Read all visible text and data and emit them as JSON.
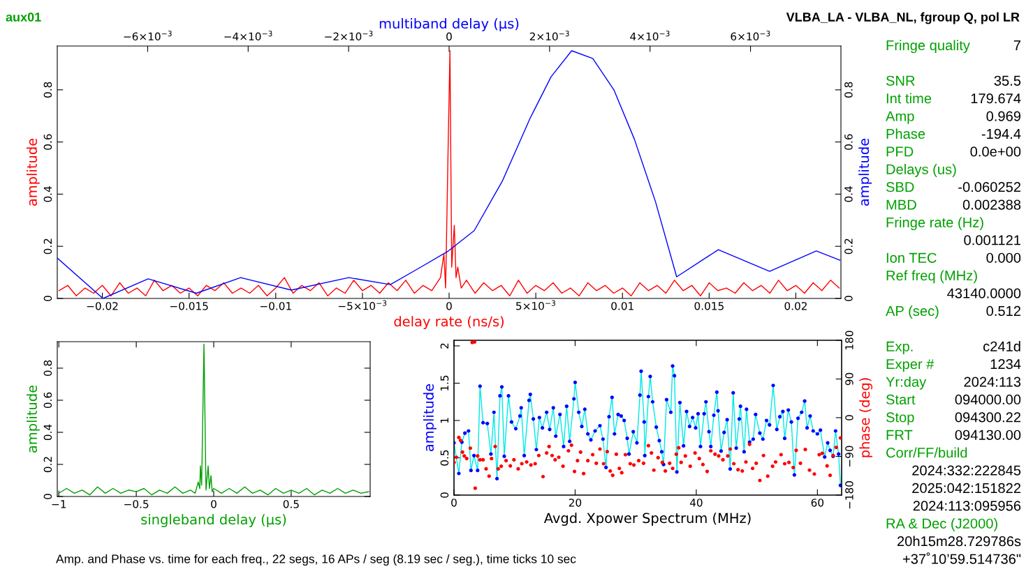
{
  "chart_data": [
    {
      "type": "line",
      "xlabel": "delay rate (ns/s)",
      "ylabel": "amplitude",
      "x2label": "multiband delay (μs)",
      "y2label": "amplitude",
      "annotations": [
        "aux01",
        "VLBA_LA - VLBA_NL, fgroup Q, pol LR",
        "Amp. and Phase vs. time for each freq., 22 segs, 16 APs / seg (8.19 sec / seg.), time ticks 10 sec"
      ],
      "xlim": [
        -0.0226,
        0.0226
      ],
      "ylim": [
        0,
        0.968
      ],
      "x2lim": [
        -0.0078,
        0.0078
      ],
      "y2lim": [
        0,
        0.968
      ],
      "xticks": [
        {
          "value": -0.02,
          "label": "−0.02"
        },
        {
          "value": -0.015,
          "label": "−0.015"
        },
        {
          "value": -0.01,
          "label": "−0.01"
        },
        {
          "value": -0.005,
          "label": "−5×10$^{−3}$"
        },
        0,
        {
          "value": 0.005,
          "label": "5×10$^{−3}$"
        },
        0.01,
        0.015,
        0.02
      ],
      "yticks": [
        0,
        0.2,
        0.4,
        0.6,
        0.8
      ],
      "y2ticks": [
        0,
        0.2,
        0.4,
        0.6,
        0.8
      ],
      "x2ticks": [
        {
          "value": -0.006,
          "label": "−6×10$^{−3}$"
        },
        {
          "value": -0.004,
          "label": "−4×10$^{−3}$"
        },
        {
          "value": -0.002,
          "label": "−2×10$^{−3}$"
        },
        0,
        {
          "value": 0.002,
          "label": "2×10$^{−3}$"
        },
        {
          "value": 0.004,
          "label": "4×10$^{−3}$"
        },
        {
          "value": 0.006,
          "label": "6×10$^{−3}$"
        }
      ],
      "grid": false,
      "series": [
        {
          "color": "#ff0000",
          "x": [
            -0.0225,
            -0.022,
            -0.0215,
            -0.021,
            -0.0205,
            -0.02,
            -0.0195,
            -0.019,
            -0.0185,
            -0.018,
            -0.0175,
            -0.017,
            -0.0165,
            -0.016,
            -0.0155,
            -0.015,
            -0.0145,
            -0.014,
            -0.0135,
            -0.013,
            -0.0125,
            -0.012,
            -0.0115,
            -0.011,
            -0.0105,
            -0.01,
            -0.0095,
            -0.009,
            -0.0085,
            -0.008,
            -0.0075,
            -0.007,
            -0.0065,
            -0.006,
            -0.0055,
            -0.005,
            -0.0045,
            -0.004,
            -0.0035,
            -0.003,
            -0.0025,
            -0.002,
            -0.0015,
            -0.001,
            -0.0005,
            -0.0003,
            -0.0002,
            -5e-05,
            5e-05,
            0.00015,
            0.0003,
            0.0004,
            0.0005,
            0.0007,
            0.001,
            0.0015,
            0.002,
            0.0025,
            0.003,
            0.0035,
            0.004,
            0.0045,
            0.005,
            0.0055,
            0.006,
            0.0065,
            0.007,
            0.0075,
            0.008,
            0.0085,
            0.009,
            0.0095,
            0.01,
            0.0105,
            0.011,
            0.0115,
            0.012,
            0.0125,
            0.013,
            0.0135,
            0.014,
            0.0145,
            0.015,
            0.0155,
            0.016,
            0.0165,
            0.017,
            0.0175,
            0.018,
            0.0185,
            0.019,
            0.0195,
            0.02,
            0.0205,
            0.021,
            0.0215,
            0.022,
            0.0225
          ],
          "values": [
            0.03,
            0.05,
            0.01,
            0.04,
            0.02,
            0.05,
            0.01,
            0.06,
            0.02,
            0.04,
            0.01,
            0.07,
            0.03,
            0.05,
            0.02,
            0.04,
            0.01,
            0.05,
            0.03,
            0.06,
            0.02,
            0.04,
            0.02,
            0.05,
            0.01,
            0.04,
            0.08,
            0.02,
            0.05,
            0.03,
            0.06,
            0.01,
            0.04,
            0.02,
            0.07,
            0.03,
            0.05,
            0.02,
            0.06,
            0.03,
            0.07,
            0.02,
            0.05,
            0.03,
            0.08,
            0.17,
            0.04,
            0.6,
            0.95,
            0.12,
            0.28,
            0.08,
            0.12,
            0.04,
            0.07,
            0.02,
            0.06,
            0.03,
            0.05,
            0.01,
            0.07,
            0.02,
            0.05,
            0.03,
            0.06,
            0.02,
            0.04,
            0.01,
            0.06,
            0.03,
            0.05,
            0.02,
            0.04,
            0.01,
            0.06,
            0.03,
            0.05,
            0.02,
            0.07,
            0.03,
            0.05,
            0.01,
            0.06,
            0.03,
            0.04,
            0.02,
            0.06,
            0.03,
            0.05,
            0.02,
            0.07,
            0.03,
            0.05,
            0.02,
            0.06,
            0.03,
            0.07,
            0.04
          ]
        },
        {
          "color": "#0000ff",
          "axis": "x2",
          "x": [
            -0.0078,
            -0.00689,
            -0.00599,
            -0.00503,
            -0.00415,
            -0.00314,
            -0.002,
            -0.00117,
            -0.00061,
            -3e-05,
            0.0005,
            0.00106,
            0.00161,
            0.00203,
            0.00244,
            0.00286,
            0.00328,
            0.00369,
            0.00411,
            0.00453,
            0.00536,
            0.00638,
            0.00731,
            0.00778
          ],
          "values": [
            0.155,
            0,
            0.075,
            0.02,
            0.08,
            0.032,
            0.08,
            0.053,
            0.115,
            0.18,
            0.26,
            0.45,
            0.69,
            0.85,
            0.95,
            0.92,
            0.8,
            0.61,
            0.37,
            0.083,
            0.187,
            0.104,
            0.182,
            0.147
          ]
        }
      ]
    },
    {
      "type": "line",
      "xlabel": "singleband delay (μs)",
      "ylabel": "amplitude",
      "xlim": [
        -1.01,
        1.01
      ],
      "ylim": [
        0,
        0.965
      ],
      "xticks": [
        {
          "value": -1,
          "label": "−1"
        },
        {
          "value": -0.5,
          "label": "−0.5"
        },
        0,
        0.5
      ],
      "yticks": [
        0,
        0.2,
        0.4,
        0.6,
        0.8
      ],
      "grid": false,
      "series": [
        {
          "color": "#00a000",
          "x": [
            -1,
            -0.95,
            -0.9,
            -0.85,
            -0.8,
            -0.75,
            -0.7,
            -0.65,
            -0.6,
            -0.55,
            -0.5,
            -0.45,
            -0.4,
            -0.35,
            -0.3,
            -0.25,
            -0.2,
            -0.15,
            -0.12,
            -0.1,
            -0.09,
            -0.086,
            -0.078,
            -0.063,
            -0.05,
            -0.036,
            -0.028,
            -0.018,
            -0.01,
            0,
            0.05,
            0.1,
            0.15,
            0.2,
            0.25,
            0.3,
            0.35,
            0.4,
            0.45,
            0.5,
            0.55,
            0.6,
            0.65,
            0.7,
            0.75,
            0.8,
            0.85,
            0.9,
            0.95,
            1
          ],
          "values": [
            0.02,
            0.05,
            0.02,
            0.04,
            0.01,
            0.06,
            0.02,
            0.05,
            0.02,
            0.04,
            0.03,
            0.05,
            0.01,
            0.04,
            0.02,
            0.06,
            0.02,
            0.04,
            0.02,
            0.09,
            0.05,
            0.19,
            0.07,
            0.95,
            0.04,
            0.19,
            0.05,
            0.13,
            0.03,
            0.05,
            0.02,
            0.05,
            0.02,
            0.06,
            0.02,
            0.04,
            0.01,
            0.05,
            0.02,
            0.04,
            0.02,
            0.05,
            0.01,
            0.04,
            0.02,
            0.05,
            0.02,
            0.04,
            0.02,
            0.03
          ]
        }
      ]
    },
    {
      "type": "scatter",
      "xlabel": "Avgd. Xpower Spectrum (MHz)",
      "ylabel": "amplitude",
      "y2label": "phase (deg)",
      "xlim": [
        0,
        64
      ],
      "ylim": [
        0,
        2.075
      ],
      "y2lim": [
        -180,
        180
      ],
      "xticks": [
        0,
        20,
        40,
        60
      ],
      "yticks": [
        0,
        0.5,
        1,
        1.5,
        2
      ],
      "y2ticks": [
        {
          "value": -180,
          "label": "−180"
        },
        {
          "value": -90,
          "label": "−90"
        },
        0,
        90,
        180
      ],
      "grid": false,
      "series": [
        {
          "type": "scatter",
          "marker": "circle",
          "color": "#0000ff",
          "x": [
            0.0,
            0.8,
            1.3,
            1.8,
            2.4,
            2.8,
            3.3,
            3.9,
            4.3,
            4.8,
            5.5,
            6.1,
            6.6,
            7.1,
            7.6,
            7.9,
            8.3,
            9.0,
            9.5,
            10.2,
            10.9,
            11.1,
            11.6,
            12.4,
            12.6,
            13.1,
            13.6,
            14.1,
            14.6,
            15.3,
            15.8,
            16.4,
            16.8,
            17.5,
            18.1,
            18.6,
            19.1,
            19.8,
            20.0,
            20.6,
            21.1,
            21.6,
            22.1,
            22.6,
            23.3,
            24.1,
            24.6,
            25.1,
            25.6,
            26.1,
            26.5,
            27.1,
            27.6,
            28.1,
            28.6,
            28.9,
            29.6,
            30.2,
            30.7,
            30.9,
            31.4,
            31.5,
            32.1,
            32.4,
            32.8,
            33.4,
            33.9,
            34.3,
            34.6,
            35.1,
            35.8,
            36.1,
            36.4,
            36.8,
            37.3,
            37.9,
            38.4,
            38.9,
            39.4,
            39.9,
            40.3,
            40.7,
            41.3,
            41.6,
            42.1,
            42.4,
            42.9,
            43.4,
            43.6,
            44.1,
            44.6,
            45.1,
            45.6,
            46.1,
            46.6,
            47.1,
            47.3,
            47.9,
            48.3,
            48.8,
            49.4,
            49.8,
            50.5,
            51.0,
            51.6,
            52.1,
            52.7,
            53.3,
            53.8,
            54.3,
            54.6,
            55.2,
            55.7,
            56.2,
            56.8,
            57.4,
            57.9,
            58.3,
            58.8,
            59.3,
            60.0,
            60.5,
            61.2,
            61.7,
            62.1,
            62.6,
            63.0,
            63.5,
            63.8
          ],
          "values": [
            0.7,
            0.29,
            0.71,
            0.83,
            0.86,
            0.33,
            0.53,
            0.33,
            1.46,
            0.97,
            0.96,
            0.55,
            1.11,
            0.22,
            1.33,
            1.45,
            0.52,
            1.33,
            0.98,
            0.89,
            1.06,
            1.17,
            0.53,
            1.27,
            1.35,
            1.02,
            0.61,
            1.04,
            0.9,
            1.11,
            0.88,
            1.17,
            0.79,
            1.08,
            0.65,
            1.19,
            0.72,
            1.29,
            1.51,
            1.11,
            0.92,
            1.15,
            0.82,
            0.74,
            0.86,
            0.93,
            0.75,
            0.37,
            1.05,
            1.31,
            0.82,
            1.08,
            1.06,
            1.0,
            0.76,
            0.55,
            0.85,
            0.7,
            1.34,
            1.66,
            0.98,
            0.53,
            1.32,
            1.59,
            1.25,
            0.91,
            0.73,
            0.58,
            0.41,
            1.28,
            1.11,
            1.73,
            1.6,
            0.31,
            1.24,
            0.66,
            1.12,
            0.92,
            1.04,
            0.9,
            1.09,
            0.65,
            1.09,
            1.25,
            0.85,
            0.65,
            1.07,
            1.38,
            1.13,
            0.59,
            0.84,
            1.01,
            0.35,
            1.37,
            0.63,
            1.02,
            1.19,
            0.58,
            1.15,
            0.71,
            0.75,
            1.08,
            0.83,
            0.75,
            1.0,
            0.94,
            1.47,
            0.88,
            1.05,
            1.12,
            0.76,
            1.14,
            0.98,
            0.27,
            1.03,
            1.11,
            1.26,
            0.9,
            1.06,
            0.86,
            0.82,
            0.87,
            0.51,
            0.7,
            0.6,
            0.52,
            0.86,
            0.55,
            0.13
          ]
        },
        {
          "type": "line",
          "color": "#00e8e8",
          "x": [
            0.0,
            0.8,
            1.3,
            1.8,
            2.4,
            2.8,
            3.3,
            3.9,
            4.3,
            4.8,
            5.5,
            6.1,
            6.6,
            7.1,
            7.6,
            7.9,
            8.3,
            9.0,
            9.5,
            10.2,
            10.9,
            11.1,
            11.6,
            12.4,
            12.6,
            13.1,
            13.6,
            14.1,
            14.6,
            15.3,
            15.8,
            16.4,
            16.8,
            17.5,
            18.1,
            18.6,
            19.1,
            19.8,
            20.0,
            20.6,
            21.1,
            21.6,
            22.1,
            22.6,
            23.3,
            24.1,
            24.6,
            25.1,
            25.6,
            26.1,
            26.5,
            27.1,
            27.6,
            28.1,
            28.6,
            28.9,
            29.6,
            30.2,
            30.7,
            30.9,
            31.4,
            31.5,
            32.1,
            32.4,
            32.8,
            33.4,
            33.9,
            34.3,
            34.6,
            35.1,
            35.8,
            36.1,
            36.4,
            36.8,
            37.3,
            37.9,
            38.4,
            38.9,
            39.4,
            39.9,
            40.3,
            40.7,
            41.3,
            41.6,
            42.1,
            42.4,
            42.9,
            43.4,
            43.6,
            44.1,
            44.6,
            45.1,
            45.6,
            46.1,
            46.6,
            47.1,
            47.3,
            47.9,
            48.3,
            48.8,
            49.4,
            49.8,
            50.5,
            51.0,
            51.6,
            52.1,
            52.7,
            53.3,
            53.8,
            54.3,
            54.6,
            55.2,
            55.7,
            56.2,
            56.8,
            57.4,
            57.9,
            58.3,
            58.8,
            59.3,
            60.0,
            60.5,
            61.2,
            61.7,
            62.1,
            62.6,
            63.0,
            63.5,
            63.8
          ],
          "values": [
            0.7,
            0.29,
            0.71,
            0.83,
            0.86,
            0.33,
            0.53,
            0.33,
            1.46,
            0.97,
            0.96,
            0.55,
            1.11,
            0.22,
            1.33,
            1.45,
            0.52,
            1.33,
            0.98,
            0.89,
            1.06,
            1.17,
            0.53,
            1.27,
            1.35,
            1.02,
            0.61,
            1.04,
            0.9,
            1.11,
            0.88,
            1.17,
            0.79,
            1.08,
            0.65,
            1.19,
            0.72,
            1.29,
            1.51,
            1.11,
            0.92,
            1.15,
            0.82,
            0.74,
            0.86,
            0.93,
            0.75,
            0.37,
            1.05,
            1.31,
            0.82,
            1.08,
            1.06,
            1.0,
            0.76,
            0.55,
            0.85,
            0.7,
            1.34,
            1.66,
            0.98,
            0.53,
            1.32,
            1.59,
            1.25,
            0.91,
            0.73,
            0.58,
            0.41,
            1.28,
            1.11,
            1.73,
            1.6,
            0.31,
            1.24,
            0.66,
            1.12,
            0.92,
            1.04,
            0.9,
            1.09,
            0.65,
            1.09,
            1.25,
            0.85,
            0.65,
            1.07,
            1.38,
            1.13,
            0.59,
            0.84,
            1.01,
            0.35,
            1.37,
            0.63,
            1.02,
            1.19,
            0.58,
            1.15,
            0.71,
            0.75,
            1.08,
            0.83,
            0.75,
            1.0,
            0.94,
            1.47,
            0.88,
            1.05,
            1.12,
            0.76,
            1.14,
            0.98,
            0.27,
            1.03,
            1.11,
            1.26,
            0.9,
            1.06,
            0.86,
            0.82,
            0.87,
            0.51,
            0.7,
            0.6,
            0.52,
            0.86,
            0.55,
            0.13
          ]
        },
        {
          "type": "scatter",
          "marker": "circle",
          "color": "#ff0000",
          "axis": "y2",
          "x": [
            0.0,
            0.4,
            0.8,
            1.1,
            1.4,
            1.7,
            2.1,
            2.7,
            3.0,
            3.4,
            3.5,
            3.9,
            4.3,
            4.8,
            5.3,
            5.8,
            6.2,
            6.8,
            7.3,
            7.8,
            8.6,
            9.3,
            9.9,
            10.6,
            11.2,
            12.0,
            12.7,
            13.4,
            14.0,
            14.7,
            15.3,
            15.7,
            16.2,
            16.7,
            17.3,
            18.0,
            18.9,
            19.4,
            19.9,
            20.4,
            20.9,
            21.4,
            22.1,
            22.9,
            23.5,
            24.1,
            24.7,
            25.3,
            25.8,
            26.2,
            26.8,
            27.3,
            27.7,
            28.3,
            29.1,
            29.7,
            30.5,
            31.3,
            32.1,
            32.6,
            33.0,
            33.7,
            34.4,
            34.9,
            35.6,
            36.1,
            36.7,
            37.1,
            37.5,
            38.2,
            39.0,
            39.8,
            40.5,
            41.1,
            41.8,
            42.4,
            43.1,
            43.7,
            44.4,
            45.2,
            45.6,
            46.2,
            46.9,
            47.6,
            48.2,
            48.8,
            49.3,
            49.9,
            50.5,
            51.1,
            51.8,
            52.6,
            53.1,
            54.0,
            54.6,
            55.3,
            56.0,
            56.5,
            57.2,
            58.0,
            58.7,
            59.5,
            60.3,
            60.8,
            61.6,
            62.1,
            62.6,
            63.1,
            63.8
          ],
          "values": [
            -104,
            -92,
            -46,
            -53,
            -80,
            -89,
            -95,
            -71,
            175,
            176,
            -164,
            -89,
            -98,
            -98,
            -119,
            -136,
            -95,
            -67,
            -119,
            -113,
            -100,
            -112,
            -98,
            -119,
            -107,
            -103,
            -110,
            -107,
            -88,
            -137,
            -82,
            -67,
            -88,
            -98,
            -92,
            -113,
            -77,
            -64,
            -125,
            -100,
            -80,
            -130,
            -100,
            -86,
            -106,
            -73,
            -107,
            -79,
            -124,
            -134,
            -85,
            -118,
            -128,
            -86,
            -107,
            -110,
            -100,
            -106,
            -65,
            -82,
            -122,
            -93,
            -104,
            -124,
            -106,
            -118,
            -85,
            -70,
            -104,
            -89,
            -113,
            -82,
            -95,
            -109,
            -125,
            -77,
            -85,
            -89,
            -98,
            -89,
            -73,
            -107,
            -121,
            -124,
            -103,
            -62,
            -118,
            -106,
            -146,
            -88,
            -136,
            -113,
            -103,
            -86,
            -107,
            -104,
            -116,
            -76,
            -106,
            -74,
            -122,
            -131,
            -86,
            -83,
            -112,
            -134,
            -88,
            -69,
            -47
          ]
        }
      ]
    },
    {
      "type": "other",
      "colors": [
        "#00a000",
        "#000000"
      ],
      "categories": [
        "Fringe quality",
        null,
        "SNR",
        "Int time",
        "Amp",
        "Phase",
        "PFD",
        "Delays (us)",
        "SBD",
        "MBD",
        "Fringe rate (Hz)",
        null,
        "Ion TEC",
        "Ref freq (MHz)",
        null,
        "AP (sec)",
        null,
        "Exp.",
        "Exper #",
        "Yr:day",
        "Start",
        "Stop",
        "FRT",
        "Corr/FF/build",
        null,
        null,
        null,
        "RA & Dec (J2000)",
        null,
        null
      ],
      "annotations": [
        "7",
        null,
        "35.5",
        "179.674",
        "0.969",
        "-194.4",
        "0.0e+00",
        null,
        "-0.060252",
        "0.002388",
        null,
        "0.001121",
        "0.000",
        null,
        "43140.0000",
        "0.512",
        null,
        "c241d",
        "1234",
        "2024:113",
        "094000.00",
        "094300.22",
        "094130.00",
        null,
        "2024:332:222845",
        "2025:042:151822",
        "2024:113:095956",
        null,
        "20h15m28.729786s",
        "+37˚10’59.514736\""
      ]
    }
  ]
}
